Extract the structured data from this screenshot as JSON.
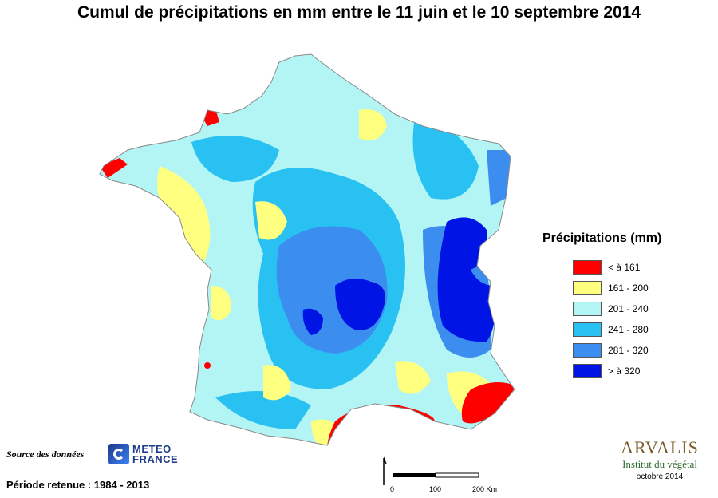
{
  "title": "Cumul de précipitations en mm entre le 11 juin et le 10 septembre 2014",
  "legend": {
    "title": "Précipitations (mm)",
    "items": [
      {
        "label": "< à 161",
        "color": "#ff0000"
      },
      {
        "label": "161 - 200",
        "color": "#ffff80"
      },
      {
        "label": "201 - 240",
        "color": "#b3f5f5"
      },
      {
        "label": "241 - 280",
        "color": "#29c1f2"
      },
      {
        "label": "281 - 320",
        "color": "#3b8ef0"
      },
      {
        "label": "> à 320",
        "color": "#0014e6"
      }
    ]
  },
  "source_label": "Source des données",
  "meteo_logo": {
    "line1": "METEO",
    "line2": "FRANCE"
  },
  "periode": "Période retenue :  1984 - 2013",
  "scale": {
    "t0": "0",
    "t1": "100",
    "t2": "200 Km"
  },
  "arvalis": {
    "name": "ARVALIS",
    "sub": "Institut du végétal",
    "date": "octobre 2014"
  }
}
